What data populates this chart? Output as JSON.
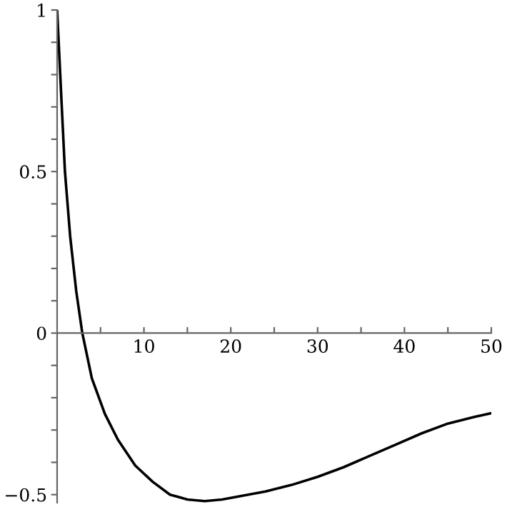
{
  "chart_data": {
    "type": "line",
    "x": [
      0,
      0.5,
      0.9,
      1.5,
      2.2,
      2.9,
      4,
      5.5,
      7,
      9,
      11,
      13,
      15,
      17,
      19,
      21,
      24,
      27,
      30,
      33,
      36,
      39,
      42,
      45,
      48,
      50
    ],
    "series": [
      {
        "color": "#000000",
        "values": [
          1,
          0.72,
          0.5,
          0.3,
          0.13,
          0,
          -0.14,
          -0.25,
          -0.33,
          -0.41,
          -0.46,
          -0.5,
          -0.515,
          -0.52,
          -0.515,
          -0.505,
          -0.49,
          -0.47,
          -0.445,
          -0.415,
          -0.38,
          -0.345,
          -0.31,
          -0.28,
          -0.26,
          -0.248
        ]
      }
    ],
    "xlim": [
      0,
      50
    ],
    "ylim": [
      -0.525,
      1
    ],
    "xticks": [
      {
        "value": 5,
        "label": null
      },
      10,
      {
        "value": 15,
        "label": null
      },
      20,
      {
        "value": 25,
        "label": null
      },
      30,
      {
        "value": 35,
        "label": null
      },
      40,
      {
        "value": 45,
        "label": null
      },
      50
    ],
    "yticks": [
      {
        "value": -0.5,
        "label": "−0.5"
      },
      {
        "value": -0.4,
        "label": null
      },
      {
        "value": -0.3,
        "label": null
      },
      {
        "value": -0.2,
        "label": null
      },
      {
        "value": -0.1,
        "label": null
      },
      0,
      {
        "value": 0.1,
        "label": null
      },
      {
        "value": 0.2,
        "label": null
      },
      {
        "value": 0.3,
        "label": null
      },
      {
        "value": 0.4,
        "label": null
      },
      0.5,
      {
        "value": 0.6,
        "label": null
      },
      {
        "value": 0.7,
        "label": null
      },
      {
        "value": 0.8,
        "label": null
      },
      {
        "value": 0.9,
        "label": null
      },
      1
    ],
    "grid": false,
    "marker": "none",
    "line_style": "solid"
  }
}
